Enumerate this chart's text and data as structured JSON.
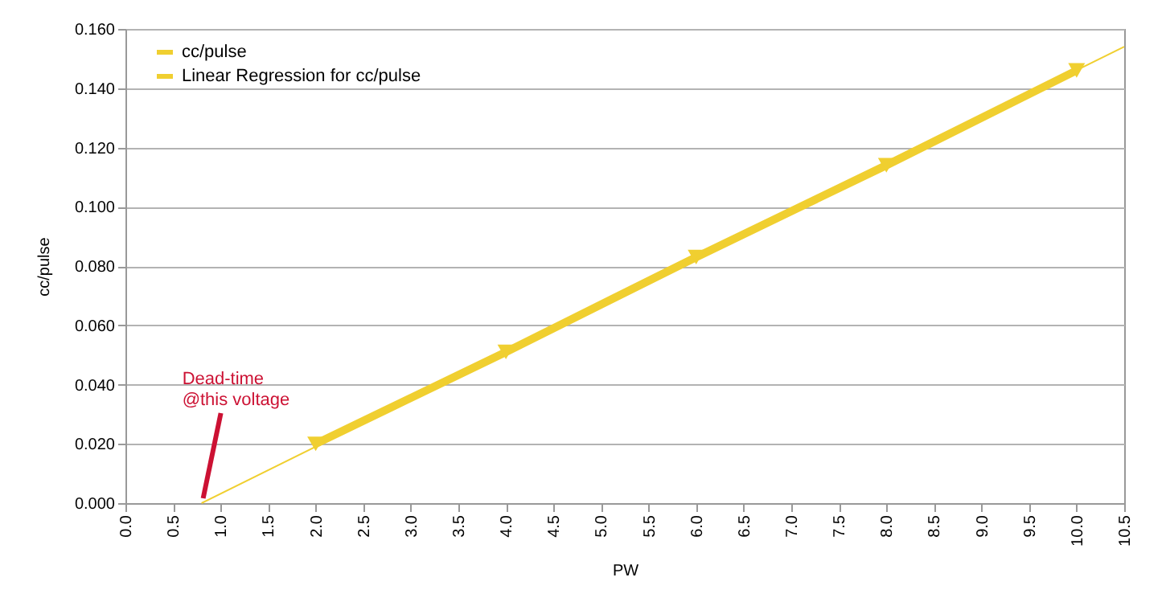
{
  "chart_data": {
    "type": "line",
    "xlabel": "PW",
    "ylabel": "cc/pulse",
    "xlim": [
      0,
      10.5
    ],
    "ylim": [
      0,
      0.16
    ],
    "xticks": [
      {
        "value": 0,
        "label": "0.0"
      },
      {
        "value": 0.5,
        "label": "0.5"
      },
      {
        "value": 1,
        "label": "1.0"
      },
      {
        "value": 1.5,
        "label": "1.5"
      },
      {
        "value": 2,
        "label": "2.0"
      },
      {
        "value": 2.5,
        "label": "2.5"
      },
      {
        "value": 3,
        "label": "3.0"
      },
      {
        "value": 3.5,
        "label": "3.5"
      },
      {
        "value": 4,
        "label": "4.0"
      },
      {
        "value": 4.5,
        "label": "4.5"
      },
      {
        "value": 5,
        "label": "5.0"
      },
      {
        "value": 5.5,
        "label": "5.5"
      },
      {
        "value": 6,
        "label": "6.0"
      },
      {
        "value": 6.5,
        "label": "6.5"
      },
      {
        "value": 7,
        "label": "7.0"
      },
      {
        "value": 7.5,
        "label": "7.5"
      },
      {
        "value": 8,
        "label": "8.0"
      },
      {
        "value": 8.5,
        "label": "8.5"
      },
      {
        "value": 9,
        "label": "9.0"
      },
      {
        "value": 9.5,
        "label": "9.5"
      },
      {
        "value": 10,
        "label": "10.0"
      },
      {
        "value": 10.5,
        "label": "10.5"
      }
    ],
    "yticks": [
      {
        "value": 0,
        "label": "0.000"
      },
      {
        "value": 0.02,
        "label": "0.020"
      },
      {
        "value": 0.04,
        "label": "0.040"
      },
      {
        "value": 0.06,
        "label": "0.060"
      },
      {
        "value": 0.08,
        "label": "0.080"
      },
      {
        "value": 0.1,
        "label": "0.100"
      },
      {
        "value": 0.12,
        "label": "0.120"
      },
      {
        "value": 0.14,
        "label": "0.140"
      },
      {
        "value": 0.16,
        "label": "0.160"
      }
    ],
    "grid": "y",
    "legend": "top left",
    "series": [
      {
        "name": "cc/pulse",
        "type": "line",
        "color": "#f0cf30",
        "marker": "triangle",
        "x": [
          2,
          4,
          6,
          8,
          10
        ],
        "values": [
          0.02,
          0.051,
          0.083,
          0.114,
          0.146
        ]
      },
      {
        "name": "Linear Regression for cc/pulse",
        "type": "line",
        "color": "#f0cf30",
        "marker": "none",
        "x": [
          0.8,
          10.5
        ],
        "values": [
          0,
          0.154
        ]
      }
    ],
    "annotations": [
      {
        "text": "Dead-time\n@this voltage",
        "x": 0.8,
        "y": 0
      }
    ]
  }
}
